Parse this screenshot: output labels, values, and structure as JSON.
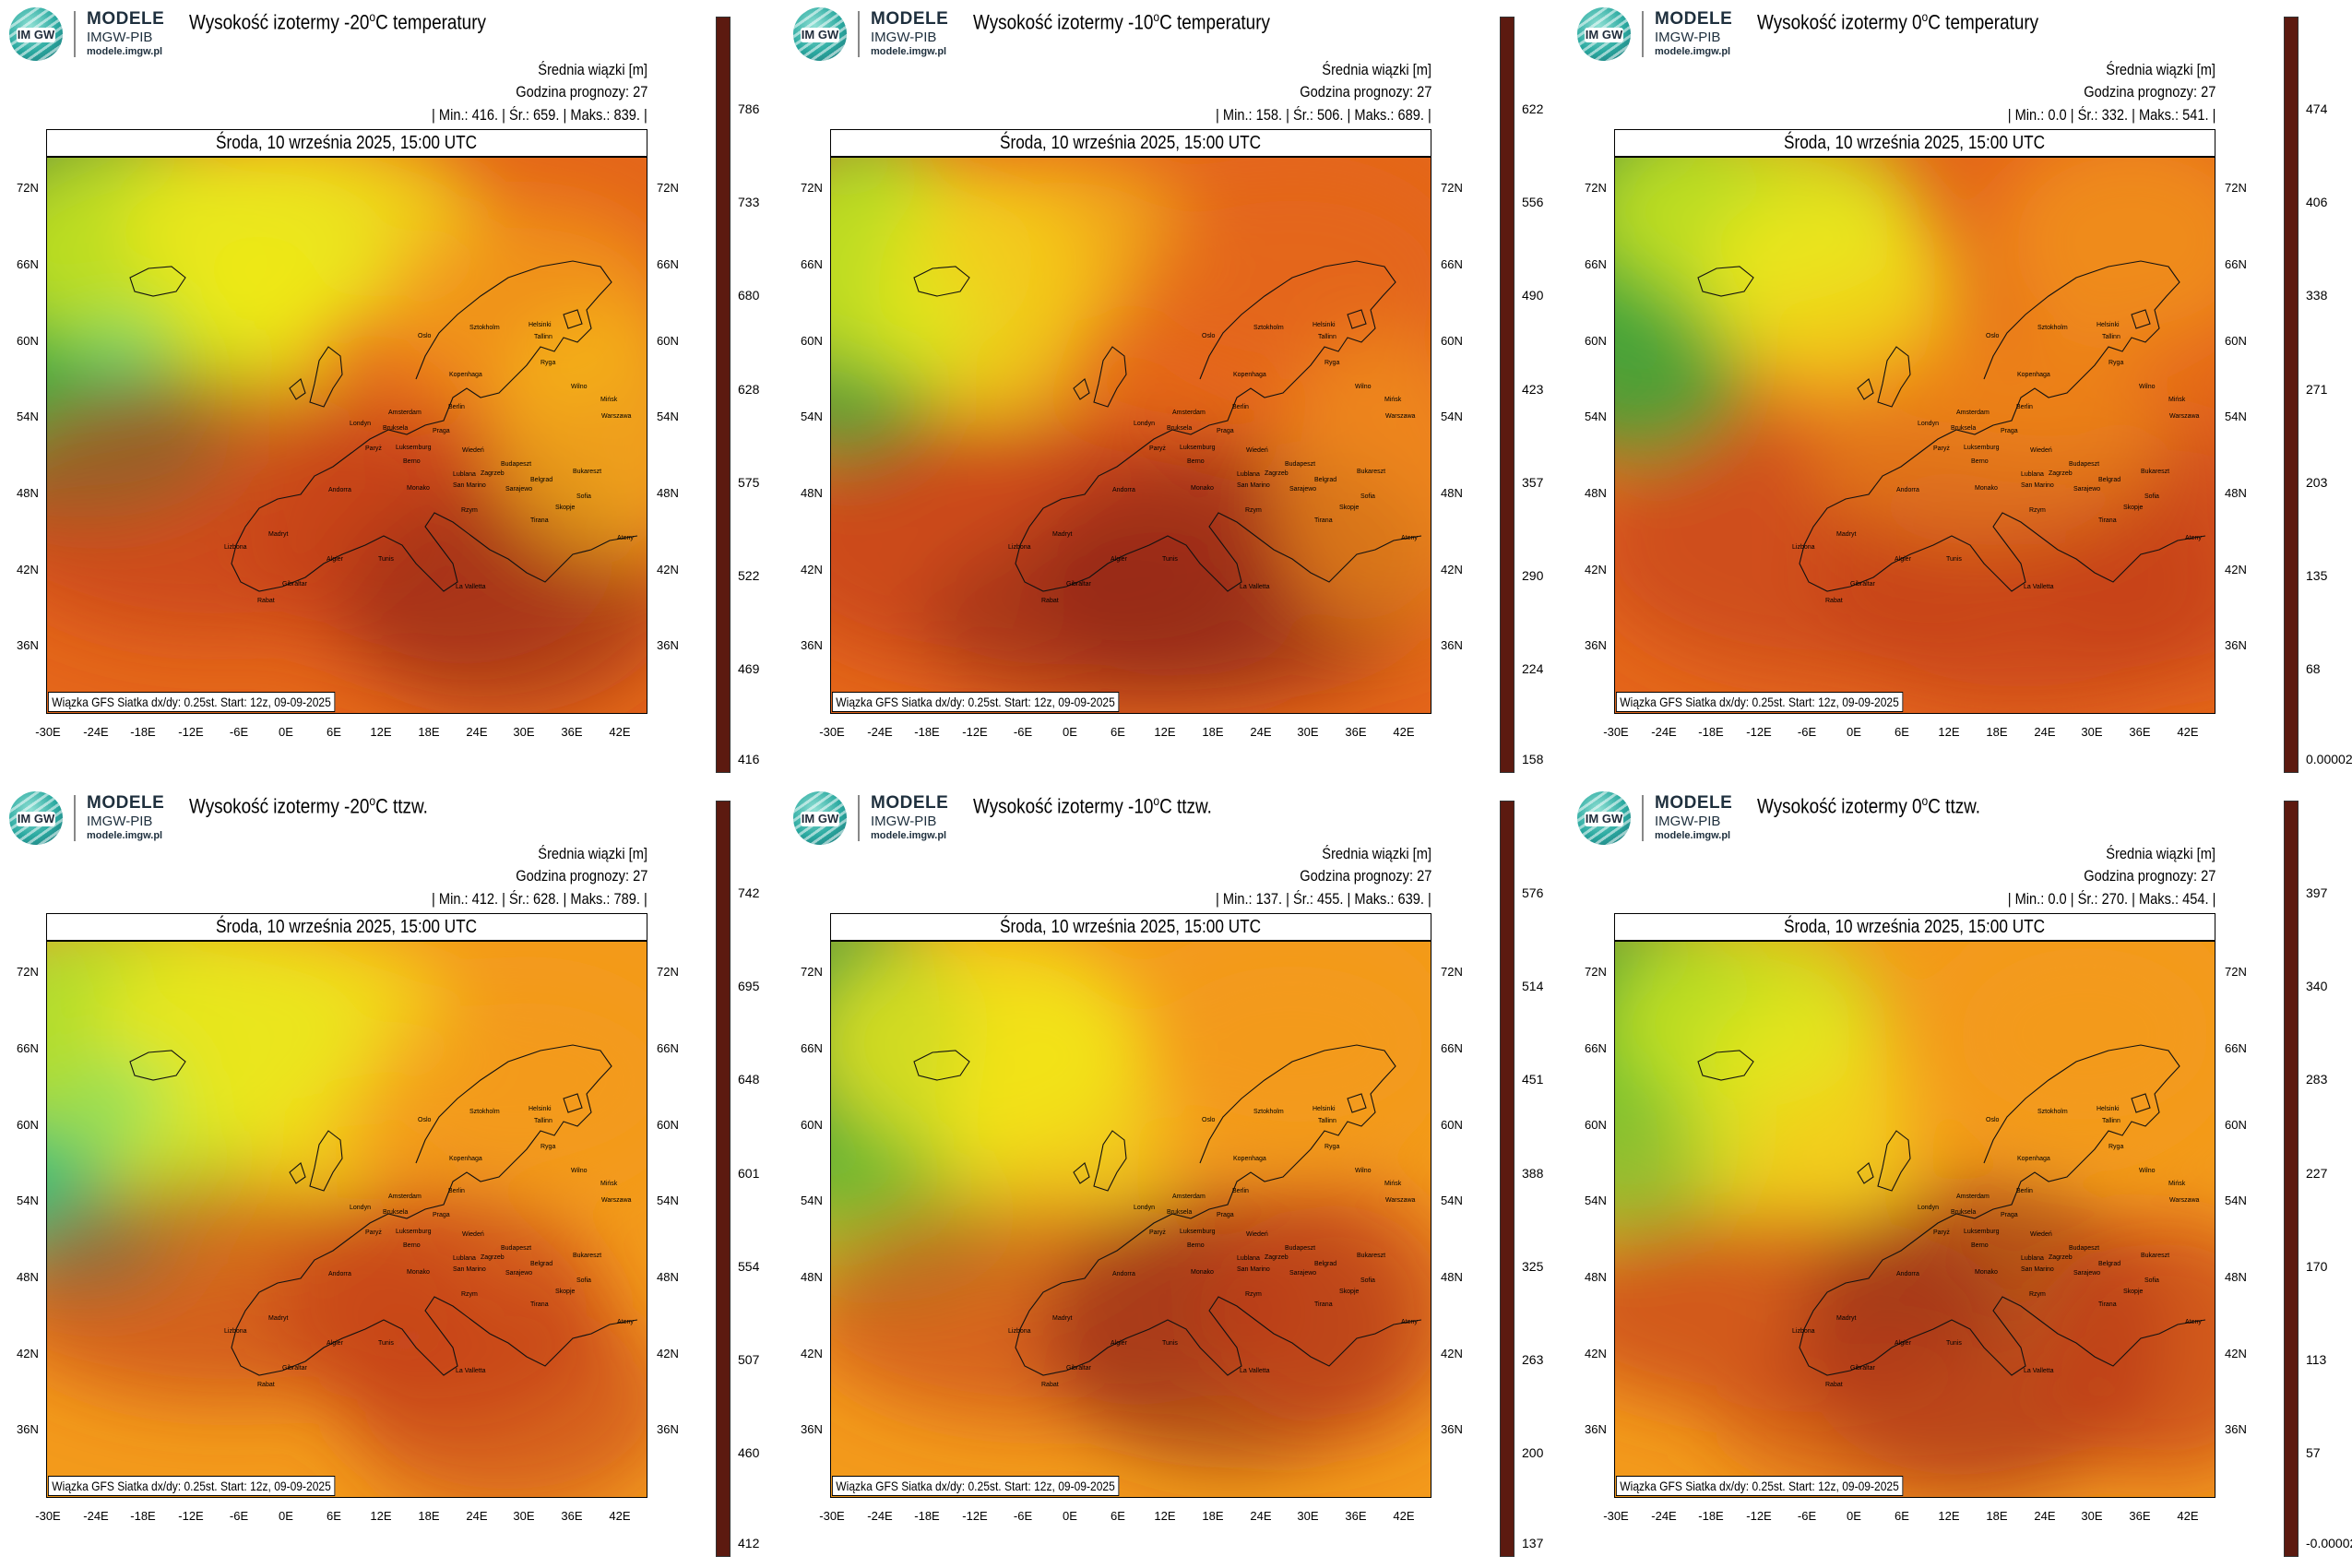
{
  "colors": {
    "c0": "#3fe6c8",
    "c1": "#2ebf7a",
    "c2": "#3aa83a",
    "c3": "#7dc832",
    "c4": "#c9e21f",
    "c5": "#f2e91a",
    "c6": "#f7c51b",
    "c7": "#f39a1b",
    "c8": "#e4661a",
    "c9": "#c4401a",
    "c10": "#8c2515",
    "c11": "#5c1a10"
  },
  "logo": {
    "line1": "MODELE",
    "line2": "IMGW-PIB",
    "line3": "modele.imgw.pl",
    "mark": "IM GW"
  },
  "common": {
    "avg_label": "Średnia wiązki [m]",
    "hour_label": "Godzina prognozy: 27",
    "date": "Środa, 10 września 2025, 15:00 UTC",
    "footer": "Wiązka GFS Siatka dx/dy: 0.25st. Start: 12z, 09-09-2025",
    "lat_labels": [
      "72N",
      "66N",
      "60N",
      "54N",
      "48N",
      "42N",
      "36N"
    ],
    "lon_labels": [
      "-30E",
      "-24E",
      "-18E",
      "-12E",
      "-6E",
      "0E",
      "6E",
      "12E",
      "18E",
      "24E",
      "30E",
      "36E",
      "42E"
    ],
    "cities": [
      "Helsinki",
      "Oslo",
      "Sztokholm",
      "Tallinn",
      "Ryga",
      "Kopenhaga",
      "Wilno",
      "Mińsk",
      "Amsterdam",
      "Berlin",
      "Warszawa",
      "Londyn",
      "Bruksela",
      "Praga",
      "Paryż",
      "Luksemburg",
      "Kiszyniów",
      "Berno",
      "Wiedeń",
      "Budapeszt",
      "Lublana",
      "Zagrzeb",
      "Belgrad",
      "Bukareszt",
      "Monako",
      "San Marino",
      "Sarajewo",
      "Sofia",
      "Andorra",
      "Rzym",
      "Skopje",
      "Tirana",
      "Madryt",
      "Ankara",
      "Lizbona",
      "Ateny",
      "Algier",
      "Tunis",
      "Gibraltar",
      "La Valletta",
      "Rabat",
      "Nikozja"
    ]
  },
  "panels": [
    {
      "title": "Wysokość izotermy -20",
      "title_suffix": "C temperatury",
      "deg": "o",
      "stats": "| Min.:    416. | Śr.:    659. | Maks.:    839. |",
      "cbar": [
        "786",
        "733",
        "680",
        "628",
        "575",
        "522",
        "469",
        "416"
      ]
    },
    {
      "title": "Wysokość izotermy -10",
      "title_suffix": "C temperatury",
      "deg": "o",
      "stats": "| Min.:    158. | Śr.:    506. | Maks.:    689. |",
      "cbar": [
        "622",
        "556",
        "490",
        "423",
        "357",
        "290",
        "224",
        "158"
      ]
    },
    {
      "title": "Wysokość izotermy 0",
      "title_suffix": "C temperatury",
      "deg": "o",
      "stats": "| Min.:    0.0 | Śr.:    332. | Maks.:    541. |",
      "cbar": [
        "474",
        "406",
        "338",
        "271",
        "203",
        "135",
        "68",
        "0.00002"
      ]
    },
    {
      "title": "Wysokość izotermy -20",
      "title_suffix": "C ttzw.",
      "deg": "o",
      "stats": "| Min.:    412. | Śr.:    628. | Maks.:    789. |",
      "cbar": [
        "742",
        "695",
        "648",
        "601",
        "554",
        "507",
        "460",
        "412"
      ]
    },
    {
      "title": "Wysokość izotermy -10",
      "title_suffix": "C ttzw.",
      "deg": "o",
      "stats": "| Min.:    137. | Śr.:    455. | Maks.:    639. |",
      "cbar": [
        "576",
        "514",
        "451",
        "388",
        "325",
        "263",
        "200",
        "137"
      ]
    },
    {
      "title": "Wysokość izotermy 0",
      "title_suffix": "C ttzw.",
      "deg": "o",
      "stats": "| Min.:    0.0 | Śr.:    270. | Maks.:    454. |",
      "cbar": [
        "397",
        "340",
        "283",
        "227",
        "170",
        "113",
        "57",
        "-0.00002"
      ]
    }
  ]
}
